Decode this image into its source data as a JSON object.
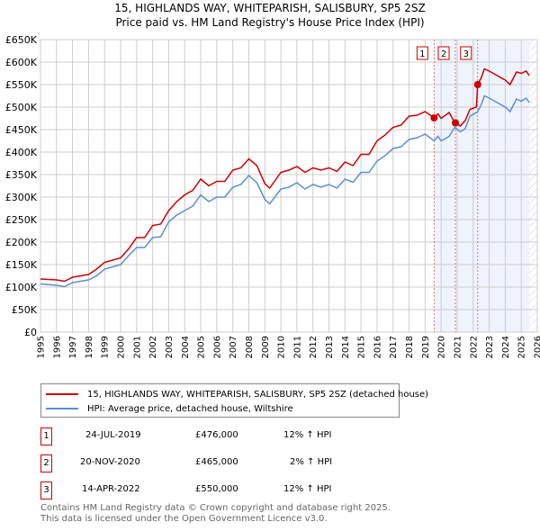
{
  "chart_data": {
    "type": "line",
    "title": "15, HIGHLANDS WAY, WHITEPARISH, SALISBURY, SP5 2SZ",
    "subtitle": "Price paid vs. HM Land Registry's House Price Index (HPI)",
    "xlim": [
      1995,
      2026
    ],
    "ylim": [
      0,
      650000
    ],
    "x_ticks": [
      "1995",
      "1996",
      "1997",
      "1998",
      "1999",
      "2000",
      "2001",
      "2002",
      "2003",
      "2004",
      "2005",
      "2006",
      "2007",
      "2008",
      "2009",
      "2010",
      "2011",
      "2012",
      "2013",
      "2014",
      "2015",
      "2016",
      "2017",
      "2018",
      "2019",
      "2020",
      "2021",
      "2022",
      "2023",
      "2024",
      "2025",
      "2026"
    ],
    "y_ticks": [
      {
        "v": 0,
        "l": "£0"
      },
      {
        "v": 50000,
        "l": "£50K"
      },
      {
        "v": 100000,
        "l": "£100K"
      },
      {
        "v": 150000,
        "l": "£150K"
      },
      {
        "v": 200000,
        "l": "£200K"
      },
      {
        "v": 250000,
        "l": "£250K"
      },
      {
        "v": 300000,
        "l": "£300K"
      },
      {
        "v": 350000,
        "l": "£350K"
      },
      {
        "v": 400000,
        "l": "£400K"
      },
      {
        "v": 450000,
        "l": "£450K"
      },
      {
        "v": 500000,
        "l": "£500K"
      },
      {
        "v": 550000,
        "l": "£550K"
      },
      {
        "v": 600000,
        "l": "£600K"
      },
      {
        "v": 650000,
        "l": "£650K"
      }
    ],
    "grid": true,
    "shaded_range": [
      2019.56,
      2025.5
    ],
    "hatched_range": [
      2025.5,
      2026
    ],
    "x": [
      1995,
      1996,
      1996.5,
      1997,
      1998,
      1998.5,
      1999,
      2000,
      2000.5,
      2001,
      2001.5,
      2002,
      2002.5,
      2003,
      2003.5,
      2004,
      2004.5,
      2005,
      2005.5,
      2006,
      2006.5,
      2007,
      2007.5,
      2008,
      2008.5,
      2009,
      2009.3,
      2010,
      2010.5,
      2011,
      2011.5,
      2012,
      2012.5,
      2013,
      2013.5,
      2014,
      2014.5,
      2015,
      2015.5,
      2016,
      2016.5,
      2017,
      2017.5,
      2018,
      2018.5,
      2019,
      2019.56,
      2019.8,
      2020,
      2020.5,
      2020.85,
      2021.2,
      2021.5,
      2021.8,
      2022.2,
      2022.28,
      2022.5,
      2022.7,
      2023,
      2023.5,
      2024,
      2024.3,
      2024.7,
      2025,
      2025.3,
      2025.5
    ],
    "series": [
      {
        "name": "15, HIGHLANDS WAY, WHITEPARISH, SALISBURY, SP5 2SZ (detached house)",
        "color": "#cc0000",
        "values": [
          118,
          116,
          113,
          122,
          128,
          140,
          155,
          165,
          185,
          210,
          210,
          237,
          240,
          270,
          290,
          305,
          315,
          340,
          325,
          335,
          335,
          360,
          365,
          385,
          370,
          330,
          320,
          355,
          360,
          368,
          355,
          365,
          360,
          365,
          357,
          378,
          370,
          395,
          395,
          425,
          438,
          455,
          460,
          480,
          482,
          490,
          476,
          485,
          475,
          488,
          465,
          458,
          470,
          495,
          500,
          550,
          565,
          585,
          580,
          570,
          560,
          550,
          578,
          575,
          580,
          570
        ]
      },
      {
        "name": "HPI: Average price, detached house, Wiltshire",
        "color": "#5b8fd0",
        "values": [
          107,
          104,
          101,
          110,
          116,
          125,
          140,
          150,
          170,
          188,
          188,
          210,
          212,
          245,
          260,
          270,
          280,
          305,
          290,
          300,
          300,
          322,
          328,
          348,
          332,
          295,
          285,
          318,
          322,
          332,
          318,
          328,
          322,
          328,
          320,
          340,
          333,
          355,
          355,
          380,
          392,
          408,
          412,
          428,
          432,
          440,
          425,
          435,
          425,
          435,
          455,
          445,
          452,
          480,
          488,
          490,
          505,
          525,
          520,
          510,
          500,
          490,
          518,
          513,
          520,
          510
        ]
      }
    ],
    "value_unit": "thousand GBP",
    "sales": [
      {
        "n": "1",
        "date": "24-JUL-2019",
        "x": 2019.56,
        "price": "£476,000",
        "value": 476,
        "hpi": "12% ↑ HPI"
      },
      {
        "n": "2",
        "date": "20-NOV-2020",
        "x": 2020.89,
        "price": "£465,000",
        "value": 465,
        "hpi": "2% ↑ HPI"
      },
      {
        "n": "3",
        "date": "14-APR-2022",
        "x": 2022.28,
        "price": "£550,000",
        "value": 550,
        "hpi": "12% ↑ HPI"
      }
    ]
  },
  "footer": {
    "line1": "Contains HM Land Registry data © Crown copyright and database right 2025.",
    "line2": "This data is licensed under the Open Government Licence v3.0."
  }
}
